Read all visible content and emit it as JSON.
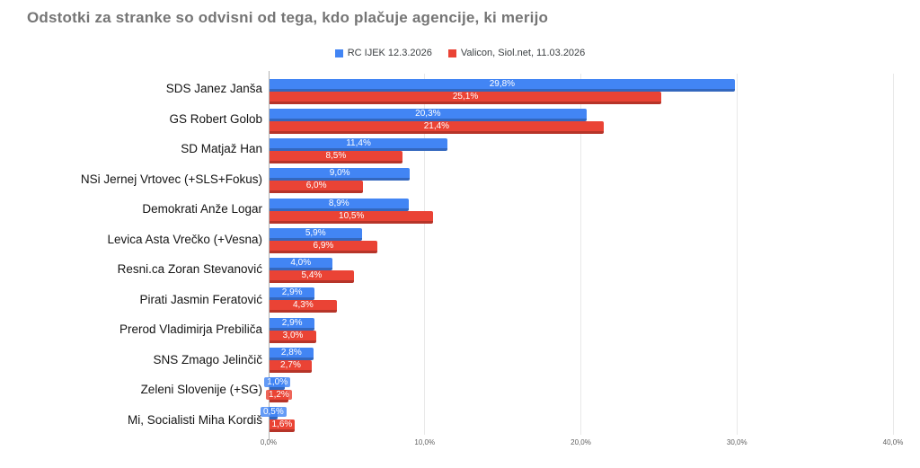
{
  "title": "Odstotki za stranke so odvisni od tega, kdo plačuje agencije, ki merijo",
  "colors": {
    "title": "#757575",
    "axis_line": "#b3b3b3",
    "gridline": "#e9e9e9",
    "tick_label": "#616161",
    "category_label": "#141414",
    "value_label": "#ffffff",
    "series_blue": "#4285f4",
    "series_red": "#ea4335"
  },
  "chart_data": {
    "type": "bar",
    "orientation": "horizontal",
    "title": "Odstotki za stranke so odvisni od tega, kdo plačuje agencije, ki merijo",
    "categories": [
      "SDS Janez Janša",
      "GS Robert Golob",
      "SD Matjaž Han",
      "NSi Jernej Vrtovec (+SLS+Fokus)",
      "Demokrati Anže Logar",
      "Levica Asta Vrečko (+Vesna)",
      "Resni.ca Zoran Stevanović",
      "Pirati Jasmin Feratović",
      "Prerod Vladimirja Prebiliča",
      "SNS Zmago Jelinčič",
      "Zeleni Slovenije (+SG)",
      "Mi, Socialisti Miha Kordiš"
    ],
    "series": [
      {
        "name": "RC IJEK 12.3.2026",
        "color": "#4285f4",
        "values": [
          29.8,
          20.3,
          11.4,
          9.0,
          8.9,
          5.9,
          4.0,
          2.9,
          2.9,
          2.8,
          1.0,
          0.5
        ],
        "value_labels": [
          "29,8%",
          "20,3%",
          "11,4%",
          "9,0%",
          "8,9%",
          "5,9%",
          "4,0%",
          "2,9%",
          "2,9%",
          "2,8%",
          "1,0%",
          "0,5%"
        ]
      },
      {
        "name": "Valicon, Siol.net, 11.03.2026",
        "color": "#ea4335",
        "values": [
          25.1,
          21.4,
          8.5,
          6.0,
          10.5,
          6.9,
          5.4,
          4.3,
          3.0,
          2.7,
          1.2,
          1.6
        ],
        "value_labels": [
          "25,1%",
          "21,4%",
          "8,5%",
          "6,0%",
          "10,5%",
          "6,9%",
          "5,4%",
          "4,3%",
          "3,0%",
          "2,7%",
          "1,2%",
          "1,6%"
        ]
      }
    ],
    "xlim": [
      0,
      40
    ],
    "x_ticks": [
      "0,0%",
      "10,0%",
      "20,0%",
      "30,0%",
      "40,0%"
    ],
    "grid": true,
    "legend_position": "top",
    "xlabel": "",
    "ylabel": ""
  }
}
